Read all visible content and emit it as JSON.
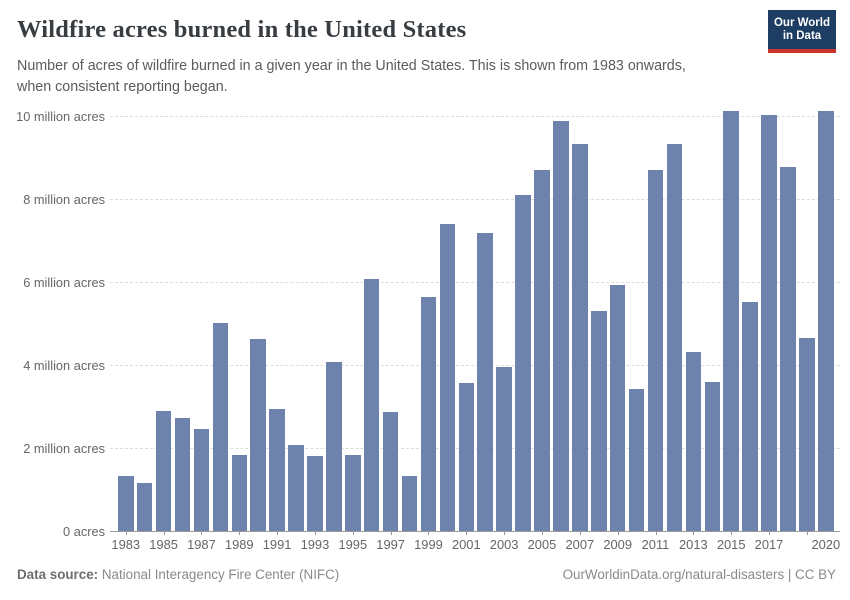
{
  "header": {
    "title": "Wildfire acres burned in the United States",
    "subtitle_line1": "Number of acres of wildfire burned in a given year in the United States. This is shown from 1983 onwards,",
    "subtitle_line2": "when consistent reporting began.",
    "logo": {
      "line1": "Our World",
      "line2": "in Data"
    }
  },
  "chart_data": {
    "type": "bar",
    "title": "Wildfire acres burned in the United States",
    "unit": "million acres",
    "xlabel": "",
    "ylabel": "acres burned",
    "ylim": [
      0,
      10
    ],
    "grid": "horizontal-dashed",
    "legend": "none",
    "x": [
      1983,
      1984,
      1985,
      1986,
      1987,
      1988,
      1989,
      1990,
      1991,
      1992,
      1993,
      1994,
      1995,
      1996,
      1997,
      1998,
      1999,
      2000,
      2001,
      2002,
      2003,
      2004,
      2005,
      2006,
      2007,
      2008,
      2009,
      2010,
      2011,
      2012,
      2013,
      2014,
      2015,
      2016,
      2017,
      2018,
      2019,
      2020
    ],
    "values": [
      1.32,
      1.15,
      2.9,
      2.72,
      2.45,
      5.01,
      1.83,
      4.62,
      2.95,
      2.07,
      1.8,
      4.07,
      1.84,
      6.07,
      2.86,
      1.33,
      5.63,
      7.39,
      3.57,
      7.18,
      3.96,
      8.1,
      8.69,
      9.87,
      9.33,
      5.29,
      5.92,
      3.42,
      8.71,
      9.33,
      4.32,
      3.6,
      10.13,
      5.51,
      10.03,
      8.77,
      4.66,
      10.12
    ],
    "y_ticks": [
      {
        "value": 0,
        "label": "0 acres"
      },
      {
        "value": 2,
        "label": "2 million acres"
      },
      {
        "value": 4,
        "label": "4 million acres"
      },
      {
        "value": 6,
        "label": "6 million acres"
      },
      {
        "value": 8,
        "label": "8 million acres"
      },
      {
        "value": 10,
        "label": "10 million acres"
      }
    ],
    "x_tick_years": [
      1983,
      1985,
      1987,
      1989,
      1991,
      1993,
      1995,
      1997,
      1999,
      2001,
      2003,
      2005,
      2007,
      2009,
      2011,
      2013,
      2015,
      2017,
      2019
    ],
    "x_labeled_years": [
      1983,
      1985,
      1987,
      1989,
      1991,
      1993,
      1995,
      1997,
      1999,
      2001,
      2003,
      2005,
      2007,
      2009,
      2011,
      2013,
      2015,
      2017,
      2020
    ]
  },
  "footer": {
    "datasource_label": "Data source:",
    "datasource_value": " National Interagency Fire Center (NIFC)",
    "link": "OurWorldinData.org/natural-disasters | CC BY"
  },
  "colors": {
    "bar": "#6e83ab",
    "logo_bg": "#1d3d63",
    "logo_red": "#c9352c",
    "title_text": "#383d42",
    "subtitle_text": "#5b5b5b",
    "axis_text": "#666666",
    "gridline": "#dcdcdc",
    "axis_line": "#9a9a9a"
  }
}
